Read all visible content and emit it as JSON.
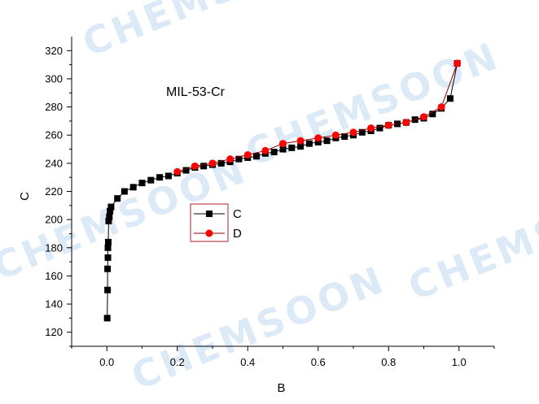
{
  "watermark": {
    "text": "CHEMSOON",
    "color": "#cfe4f3"
  },
  "chart_data": {
    "type": "scatter",
    "title": "",
    "annotation": "MIL-53-Cr",
    "xlabel": "B",
    "ylabel": "C",
    "xlim": [
      -0.1,
      1.1
    ],
    "ylim": [
      110,
      330
    ],
    "x_ticks": [
      "0.0",
      "0.2",
      "0.4",
      "0.6",
      "0.8",
      "1.0"
    ],
    "x_tick_values": [
      0,
      0.2,
      0.4,
      0.6,
      0.8,
      1.0
    ],
    "y_ticks": [
      "120",
      "140",
      "160",
      "180",
      "200",
      "220",
      "240",
      "260",
      "280",
      "300",
      "320"
    ],
    "y_tick_values": [
      120,
      140,
      160,
      180,
      200,
      220,
      240,
      260,
      280,
      300,
      320
    ],
    "grid": false,
    "legend_placement": "center-left",
    "series": [
      {
        "name": "C",
        "color": "#000000",
        "line_color": "#000000",
        "marker": "square",
        "points": [
          [
            0.001,
            130
          ],
          [
            0.002,
            150
          ],
          [
            0.002,
            165
          ],
          [
            0.003,
            173
          ],
          [
            0.003,
            180
          ],
          [
            0.004,
            184
          ],
          [
            0.005,
            199
          ],
          [
            0.007,
            202
          ],
          [
            0.009,
            206
          ],
          [
            0.012,
            209
          ],
          [
            0.03,
            215
          ],
          [
            0.05,
            220
          ],
          [
            0.075,
            223
          ],
          [
            0.1,
            226
          ],
          [
            0.125,
            228
          ],
          [
            0.15,
            230
          ],
          [
            0.175,
            231
          ],
          [
            0.2,
            233
          ],
          [
            0.225,
            235
          ],
          [
            0.25,
            237
          ],
          [
            0.275,
            238
          ],
          [
            0.3,
            239
          ],
          [
            0.325,
            240
          ],
          [
            0.35,
            241
          ],
          [
            0.375,
            243
          ],
          [
            0.4,
            244
          ],
          [
            0.425,
            245
          ],
          [
            0.45,
            247
          ],
          [
            0.475,
            248
          ],
          [
            0.5,
            250
          ],
          [
            0.525,
            251
          ],
          [
            0.55,
            252
          ],
          [
            0.575,
            254
          ],
          [
            0.6,
            255
          ],
          [
            0.625,
            256
          ],
          [
            0.65,
            258
          ],
          [
            0.675,
            259
          ],
          [
            0.7,
            260
          ],
          [
            0.725,
            262
          ],
          [
            0.75,
            263
          ],
          [
            0.775,
            265
          ],
          [
            0.8,
            267
          ],
          [
            0.825,
            268
          ],
          [
            0.85,
            269
          ],
          [
            0.875,
            271
          ],
          [
            0.9,
            272
          ],
          [
            0.925,
            275
          ],
          [
            0.95,
            279
          ],
          [
            0.975,
            286
          ],
          [
            0.995,
            311
          ]
        ]
      },
      {
        "name": "D",
        "color": "#ff0000",
        "line_color": "#8b0000",
        "marker": "circle",
        "points": [
          [
            0.995,
            311
          ],
          [
            0.95,
            280
          ],
          [
            0.9,
            273
          ],
          [
            0.85,
            269
          ],
          [
            0.8,
            267
          ],
          [
            0.75,
            265
          ],
          [
            0.7,
            262
          ],
          [
            0.65,
            260
          ],
          [
            0.6,
            258
          ],
          [
            0.55,
            256
          ],
          [
            0.5,
            254
          ],
          [
            0.45,
            249
          ],
          [
            0.4,
            246
          ],
          [
            0.35,
            243
          ],
          [
            0.3,
            240
          ],
          [
            0.25,
            238
          ],
          [
            0.2,
            234
          ]
        ]
      }
    ]
  }
}
